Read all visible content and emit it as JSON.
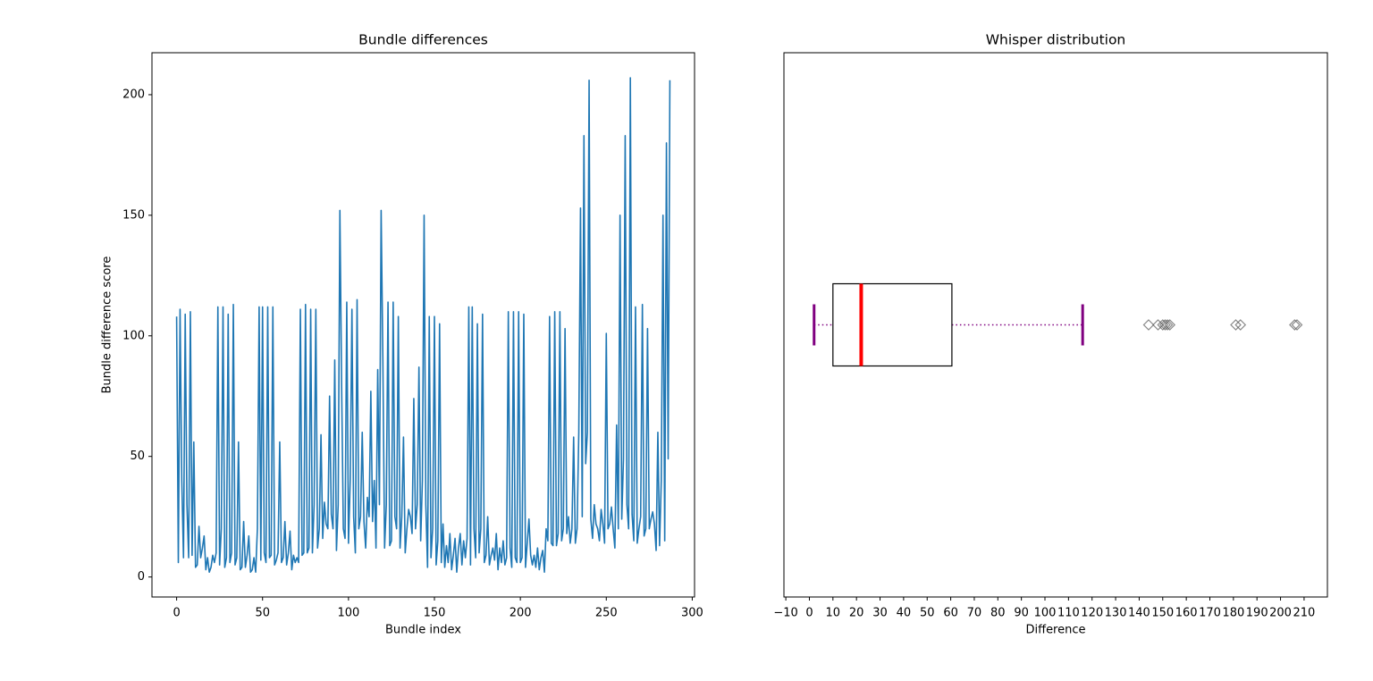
{
  "chart_data": [
    {
      "type": "line",
      "title": "Bundle differences",
      "xlabel": "Bundle index",
      "ylabel": "Bundle difference score",
      "x": [
        0,
        1,
        2,
        3,
        4,
        5,
        6,
        7,
        8,
        9,
        10,
        11,
        12,
        13,
        14,
        15,
        16,
        17,
        18,
        19,
        20,
        21,
        22,
        23,
        24,
        25,
        26,
        27,
        28,
        29,
        30,
        31,
        32,
        33,
        34,
        35,
        36,
        37,
        38,
        39,
        40,
        41,
        42,
        43,
        44,
        45,
        46,
        47,
        48,
        49,
        50,
        51,
        52,
        53,
        54,
        55,
        56,
        57,
        58,
        59,
        60,
        61,
        62,
        63,
        64,
        65,
        66,
        67,
        68,
        69,
        70,
        71,
        72,
        73,
        74,
        75,
        76,
        77,
        78,
        79,
        80,
        81,
        82,
        83,
        84,
        85,
        86,
        87,
        88,
        89,
        90,
        91,
        92,
        93,
        94,
        95,
        96,
        97,
        98,
        99,
        100,
        101,
        102,
        103,
        104,
        105,
        106,
        107,
        108,
        109,
        110,
        111,
        112,
        113,
        114,
        115,
        116,
        117,
        118,
        119,
        120,
        121,
        122,
        123,
        124,
        125,
        126,
        127,
        128,
        129,
        130,
        131,
        132,
        133,
        134,
        135,
        136,
        137,
        138,
        139,
        140,
        141,
        142,
        143,
        144,
        145,
        146,
        147,
        148,
        149,
        150,
        151,
        152,
        153,
        154,
        155,
        156,
        157,
        158,
        159,
        160,
        161,
        162,
        163,
        164,
        165,
        166,
        167,
        168,
        169,
        170,
        171,
        172,
        173,
        174,
        175,
        176,
        177,
        178,
        179,
        180,
        181,
        182,
        183,
        184,
        185,
        186,
        187,
        188,
        189,
        190,
        191,
        192,
        193,
        194,
        195,
        196,
        197,
        198,
        199,
        200,
        201,
        202,
        203,
        204,
        205,
        206,
        207,
        208,
        209,
        210,
        211,
        212,
        213,
        214,
        215,
        216,
        217,
        218,
        219,
        220,
        221,
        222,
        223,
        224,
        225,
        226,
        227,
        228,
        229,
        230,
        231,
        232,
        233,
        234,
        235,
        236,
        237,
        238,
        239,
        240,
        241,
        242,
        243,
        244,
        245,
        246,
        247,
        248,
        249,
        250,
        251,
        252,
        253,
        254,
        255,
        256,
        257,
        258,
        259,
        260,
        261,
        262,
        263,
        264,
        265,
        266,
        267,
        268,
        269,
        270,
        271,
        272,
        273,
        274,
        275,
        276,
        277,
        278,
        279,
        280,
        281,
        282,
        283,
        284,
        285,
        286,
        287
      ],
      "series": [
        {
          "color": "#1f77b4",
          "values": [
            108,
            6,
            111,
            40,
            8,
            109,
            30,
            8,
            110,
            9,
            56,
            4,
            5,
            21,
            8,
            12,
            17,
            3,
            8,
            2,
            4,
            9,
            6,
            10,
            112,
            5,
            20,
            112,
            4,
            8,
            109,
            6,
            10,
            113,
            5,
            8,
            56,
            3,
            4,
            23,
            4,
            9,
            17,
            2,
            3,
            8,
            2,
            20,
            112,
            7,
            112,
            10,
            6,
            112,
            8,
            9,
            112,
            5,
            7,
            10,
            56,
            6,
            8,
            23,
            5,
            10,
            19,
            3,
            9,
            6,
            8,
            6,
            111,
            9,
            10,
            113,
            10,
            12,
            111,
            10,
            30,
            111,
            12,
            20,
            59,
            16,
            31,
            22,
            20,
            75,
            26,
            20,
            90,
            11,
            30,
            152,
            80,
            20,
            16,
            114,
            14,
            40,
            111,
            25,
            10,
            115,
            20,
            25,
            60,
            23,
            12,
            33,
            25,
            77,
            23,
            40,
            12,
            86,
            30,
            152,
            90,
            12,
            30,
            114,
            13,
            15,
            114,
            25,
            20,
            108,
            12,
            25,
            58,
            10,
            20,
            28,
            25,
            18,
            74,
            20,
            30,
            87,
            15,
            40,
            150,
            30,
            4,
            108,
            8,
            20,
            108,
            5,
            15,
            105,
            6,
            22,
            4,
            13,
            6,
            18,
            3,
            9,
            16,
            2,
            12,
            18,
            5,
            15,
            8,
            16,
            112,
            5,
            112,
            20,
            8,
            105,
            10,
            20,
            109,
            6,
            9,
            25,
            5,
            9,
            12,
            7,
            18,
            3,
            12,
            6,
            15,
            5,
            8,
            110,
            12,
            4,
            110,
            8,
            6,
            110,
            6,
            8,
            109,
            4,
            14,
            24,
            9,
            5,
            9,
            4,
            12,
            3,
            8,
            11,
            2,
            20,
            15,
            108,
            14,
            13,
            110,
            13,
            18,
            110,
            15,
            20,
            103,
            18,
            25,
            14,
            20,
            58,
            14,
            20,
            60,
            153,
            25,
            183,
            47,
            60,
            206,
            24,
            16,
            30,
            22,
            20,
            15,
            28,
            22,
            14,
            101,
            20,
            22,
            29,
            20,
            12,
            63,
            20,
            150,
            24,
            49,
            183,
            30,
            20,
            207,
            26,
            15,
            112,
            14,
            20,
            25,
            113,
            17,
            20,
            103,
            20,
            24,
            27,
            22,
            11,
            60,
            13,
            40,
            150,
            15,
            180,
            49,
            206
          ]
        }
      ],
      "xlim": [
        -14.35,
        301.35
      ],
      "xticks": [
        0,
        50,
        100,
        150,
        200,
        250,
        300
      ],
      "ylim": [
        -8.3,
        217.4
      ],
      "yticks": [
        0,
        50,
        100,
        150,
        200
      ]
    },
    {
      "type": "box",
      "title": "Whisper distribution",
      "xlabel": "Difference",
      "stats": {
        "whislo": 2,
        "q1": 10,
        "med": 22,
        "q3": 60.5,
        "whishi": 116,
        "fliers": [
          144,
          148,
          150,
          151,
          152,
          153,
          181,
          183,
          206,
          207
        ]
      },
      "box_color": "#000000",
      "median_color": "#ff0000",
      "whisker_color": "#800080",
      "flier_color": "#555555",
      "xlim": [
        -10.8,
        219.9
      ],
      "xticks": [
        {
          "value": -10,
          "label": "−10"
        },
        0,
        10,
        20,
        30,
        40,
        50,
        60,
        70,
        80,
        90,
        100,
        110,
        120,
        130,
        140,
        150,
        160,
        170,
        180,
        190,
        200,
        210
      ]
    }
  ]
}
